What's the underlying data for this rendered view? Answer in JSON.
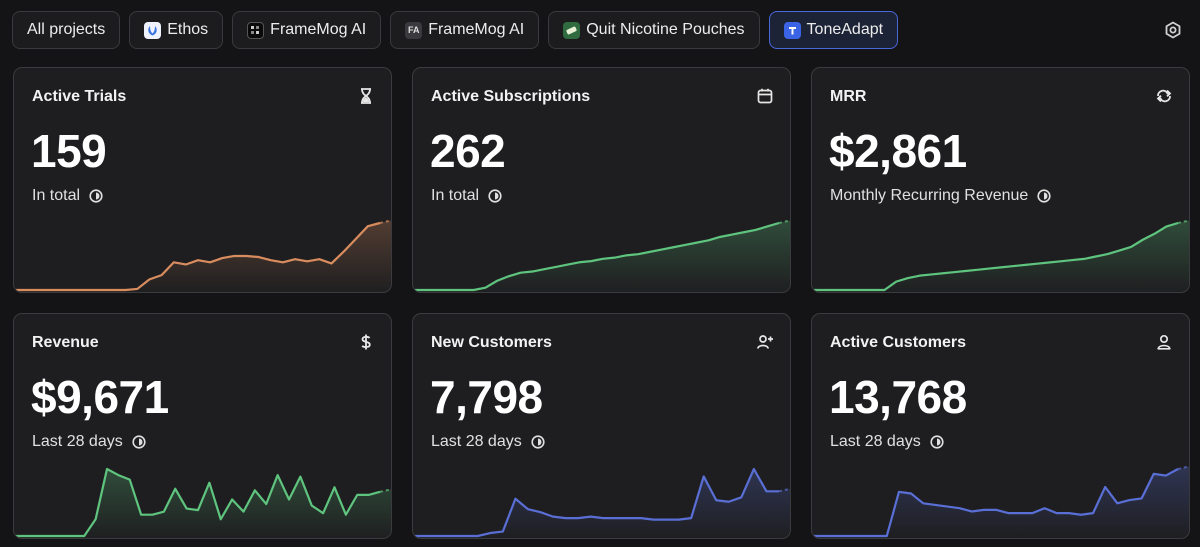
{
  "tabs": [
    {
      "label": "All projects",
      "icon": "",
      "active": false
    },
    {
      "label": "Ethos",
      "icon": "ethos-logo-icon",
      "active": false
    },
    {
      "label": "FrameMog AI",
      "icon": "framemog-logo-icon",
      "active": false
    },
    {
      "label": "FrameMog AI",
      "icon": "fa-logo-icon",
      "icon_text": "FA",
      "active": false
    },
    {
      "label": "Quit Nicotine Pouches",
      "icon": "nicotine-logo-icon",
      "active": false
    },
    {
      "label": "ToneAdapt",
      "icon": "toneadapt-logo-icon",
      "active": true
    }
  ],
  "colors": {
    "background": "#141416",
    "card": "#1e1e20",
    "orange": "#d98d5f",
    "green": "#5ec47e",
    "blue": "#5a6fd6",
    "active_border": "#4867d8"
  },
  "cards": [
    {
      "title": "Active Trials",
      "icon": "hourglass-icon",
      "value": "159",
      "subtitle": "In total",
      "color": "#d98d5f",
      "trend": [
        0,
        0,
        0,
        0,
        0,
        0,
        0,
        0,
        0,
        0,
        1,
        10,
        14,
        26,
        24,
        28,
        26,
        30,
        32,
        32,
        31,
        28,
        26,
        29,
        27,
        29,
        25,
        36,
        48,
        60,
        63
      ]
    },
    {
      "title": "Active Subscriptions",
      "icon": "calendar-icon",
      "value": "262",
      "subtitle": "In total",
      "color": "#5ec47e",
      "trend": [
        0,
        0,
        0,
        0,
        0,
        0,
        2,
        8,
        12,
        15,
        16,
        18,
        20,
        22,
        24,
        25,
        27,
        28,
        30,
        31,
        33,
        35,
        37,
        39,
        41,
        43,
        46,
        48,
        50,
        52,
        55,
        58
      ]
    },
    {
      "title": "MRR",
      "icon": "refresh-icon",
      "value": "$2,861",
      "subtitle": "Monthly Recurring Revenue",
      "color": "#5ec47e",
      "trend": [
        0,
        0,
        0,
        0,
        0,
        0,
        0,
        7,
        10,
        12,
        13,
        14,
        15,
        16,
        17,
        18,
        19,
        20,
        21,
        22,
        23,
        24,
        25,
        26,
        28,
        30,
        33,
        36,
        42,
        47,
        53,
        56
      ]
    },
    {
      "title": "Revenue",
      "icon": "dollar-icon",
      "value": "$9,671",
      "subtitle": "Last 28 days",
      "color": "#5ec47e",
      "trend": [
        0,
        0,
        0,
        0,
        0,
        0,
        0,
        11,
        44,
        40,
        37,
        14,
        14,
        16,
        31,
        18,
        17,
        35,
        11,
        24,
        16,
        30,
        21,
        40,
        24,
        39,
        20,
        15,
        32,
        14,
        27,
        27,
        29
      ]
    },
    {
      "title": "New Customers",
      "icon": "user-plus-icon",
      "value": "7,798",
      "subtitle": "Last 28 days",
      "color": "#5a6fd6",
      "trend": [
        0,
        0,
        0,
        0,
        0,
        0,
        2,
        3,
        25,
        18,
        16,
        13,
        12,
        12,
        13,
        12,
        12,
        12,
        12,
        11,
        11,
        11,
        12,
        40,
        24,
        23,
        26,
        45,
        30,
        30
      ]
    },
    {
      "title": "Active Customers",
      "icon": "user-icon",
      "value": "13,768",
      "subtitle": "Last 28 days",
      "color": "#5a6fd6",
      "trend": [
        0,
        0,
        0,
        0,
        0,
        0,
        0,
        27,
        26,
        20,
        19,
        18,
        17,
        15,
        16,
        16,
        14,
        14,
        14,
        17,
        14,
        14,
        13,
        14,
        30,
        20,
        22,
        23,
        38,
        37,
        41
      ]
    }
  ]
}
